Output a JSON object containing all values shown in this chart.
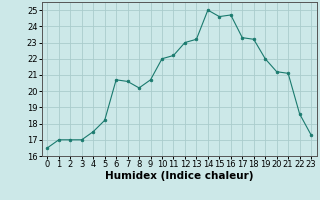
{
  "x": [
    0,
    1,
    2,
    3,
    4,
    5,
    6,
    7,
    8,
    9,
    10,
    11,
    12,
    13,
    14,
    15,
    16,
    17,
    18,
    19,
    20,
    21,
    22,
    23
  ],
  "y": [
    16.5,
    17.0,
    17.0,
    17.0,
    17.5,
    18.2,
    20.7,
    20.6,
    20.2,
    20.7,
    22.0,
    22.2,
    23.0,
    23.2,
    25.0,
    24.6,
    24.7,
    23.3,
    23.2,
    22.0,
    21.2,
    21.1,
    18.6,
    17.3
  ],
  "line_color": "#1a7a6e",
  "marker_color": "#1a7a6e",
  "bg_color": "#cce8e8",
  "grid_color": "#aacccc",
  "xlabel": "Humidex (Indice chaleur)",
  "ylim": [
    16,
    25.5
  ],
  "xlim": [
    -0.5,
    23.5
  ],
  "yticks": [
    16,
    17,
    18,
    19,
    20,
    21,
    22,
    23,
    24,
    25
  ],
  "xticks": [
    0,
    1,
    2,
    3,
    4,
    5,
    6,
    7,
    8,
    9,
    10,
    11,
    12,
    13,
    14,
    15,
    16,
    17,
    18,
    19,
    20,
    21,
    22,
    23
  ],
  "tick_fontsize": 6,
  "label_fontsize": 7.5
}
